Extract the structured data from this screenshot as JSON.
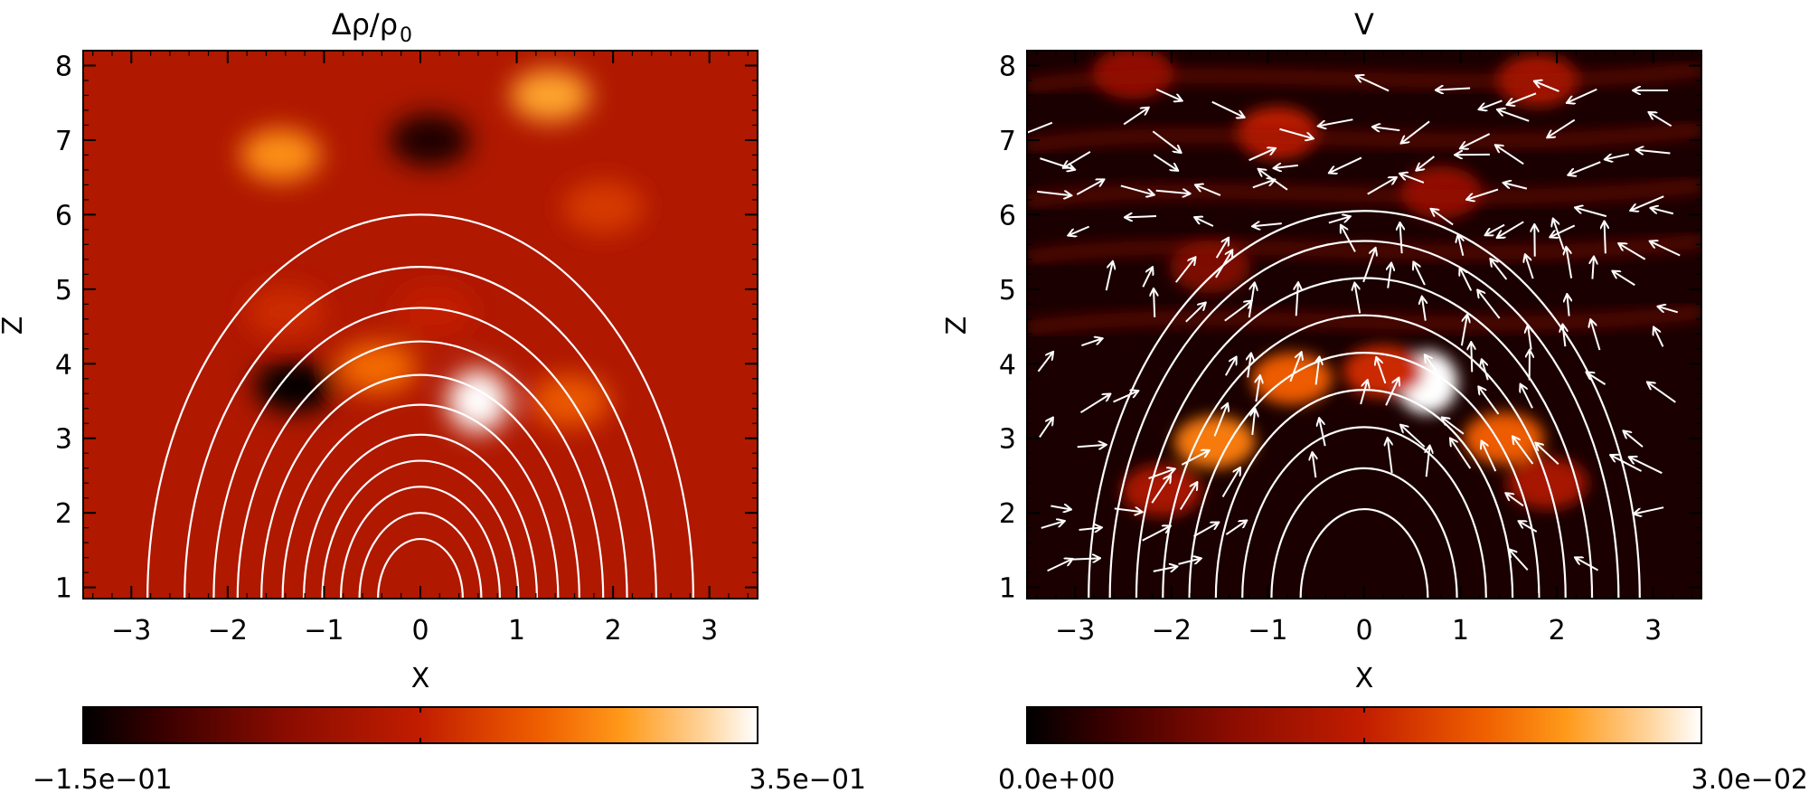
{
  "chart_data": [
    {
      "type": "heatmap",
      "title": "Δρ/ρ",
      "title_subscript": "0",
      "xlabel": "X",
      "ylabel": "Z",
      "xlim": [
        -3.5,
        3.5
      ],
      "ylim": [
        0.85,
        8.2
      ],
      "xticks": [
        -3,
        -2,
        -1,
        0,
        1,
        2,
        3
      ],
      "xtick_labels": [
        "−3",
        "−2",
        "−1",
        "0",
        "1",
        "2",
        "3"
      ],
      "yticks": [
        1,
        2,
        3,
        4,
        5,
        6,
        7,
        8
      ],
      "ytick_labels": [
        "1",
        "2",
        "3",
        "4",
        "5",
        "6",
        "7",
        "8"
      ],
      "field_lines": {
        "center": [
          0,
          0.85
        ],
        "radii": [
          0.8,
          1.15,
          1.5,
          1.85,
          2.2,
          2.6,
          3.0,
          3.45,
          3.9,
          4.45,
          5.15
        ]
      },
      "blobs": [
        {
          "x": 0.6,
          "z": 3.5,
          "value": 0.35
        },
        {
          "x": -0.45,
          "z": 3.95,
          "value": 0.2
        },
        {
          "x": 1.55,
          "z": 3.5,
          "value": 0.18
        },
        {
          "x": -1.3,
          "z": 3.7,
          "value": -0.15
        },
        {
          "x": -1.4,
          "z": 4.7,
          "value": 0.12
        },
        {
          "x": 0.15,
          "z": 4.7,
          "value": 0.1
        },
        {
          "x": -1.45,
          "z": 6.8,
          "value": 0.24
        },
        {
          "x": 1.35,
          "z": 7.6,
          "value": 0.26
        },
        {
          "x": 1.9,
          "z": 6.1,
          "value": 0.14
        },
        {
          "x": 0.1,
          "z": 7.0,
          "value": -0.12
        }
      ],
      "colorbar": {
        "min": -0.15,
        "max": 0.35,
        "min_label": "−1.5e−01",
        "max_label": "3.5e−01"
      }
    },
    {
      "type": "heatmap",
      "title": "V",
      "xlabel": "X",
      "ylabel": "Z",
      "xlim": [
        -3.5,
        3.5
      ],
      "ylim": [
        0.85,
        8.2
      ],
      "xticks": [
        -3,
        -2,
        -1,
        0,
        1,
        2,
        3
      ],
      "xtick_labels": [
        "−3",
        "−2",
        "−1",
        "0",
        "1",
        "2",
        "3"
      ],
      "yticks": [
        1,
        2,
        3,
        4,
        5,
        6,
        7,
        8
      ],
      "ytick_labels": [
        "1",
        "2",
        "3",
        "4",
        "5",
        "6",
        "7",
        "8"
      ],
      "field_lines": {
        "center": [
          0,
          0.85
        ],
        "radii": [
          1.2,
          1.75,
          2.3,
          2.8,
          3.3,
          3.8,
          4.3,
          4.8,
          5.2
        ]
      },
      "blobs": [
        {
          "x": 0.65,
          "z": 3.75,
          "value": 0.03
        },
        {
          "x": -0.75,
          "z": 3.8,
          "value": 0.02
        },
        {
          "x": 0.2,
          "z": 3.9,
          "value": 0.016
        },
        {
          "x": -1.55,
          "z": 2.95,
          "value": 0.022
        },
        {
          "x": 1.45,
          "z": 3.0,
          "value": 0.02
        },
        {
          "x": -2.1,
          "z": 2.3,
          "value": 0.012
        },
        {
          "x": 1.9,
          "z": 2.4,
          "value": 0.012
        },
        {
          "x": -0.9,
          "z": 7.1,
          "value": 0.014
        },
        {
          "x": 0.8,
          "z": 6.3,
          "value": 0.01
        },
        {
          "x": 1.8,
          "z": 7.8,
          "value": 0.012
        },
        {
          "x": -2.4,
          "z": 7.9,
          "value": 0.01
        },
        {
          "x": -1.6,
          "z": 5.3,
          "value": 0.008
        }
      ],
      "colorbar": {
        "min": 0.0,
        "max": 0.03,
        "min_label": "0.0e+00",
        "max_label": "3.0e−02"
      }
    }
  ]
}
